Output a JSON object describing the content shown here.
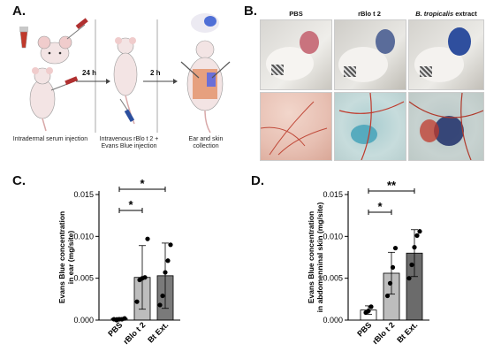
{
  "panelA": {
    "letter": "A.",
    "step1_caption": "Intradermal serum injection",
    "step2_caption": "Intravenous rBlo t 2 + Evans Blue injection",
    "step3_caption": "Ear and skin collection",
    "arrow1": "24 h",
    "arrow2": "2 h"
  },
  "panelB": {
    "letter": "B.",
    "col1": "PBS",
    "col2": "rBlo t 2",
    "col3_italic": "B. tropicalis",
    "col3_rest": " extract"
  },
  "panelC": {
    "letter": "C."
  },
  "panelD": {
    "letter": "D."
  },
  "chart_data": [
    {
      "type": "bar",
      "categories": [
        "PBS",
        "rBlo t 2",
        "Bt Ext."
      ],
      "values": [
        0.0002,
        0.0051,
        0.0053
      ],
      "error": [
        0.0001,
        0.0038,
        0.0039
      ],
      "points": [
        [
          0.0001,
          0.0,
          0.0001,
          0.0001,
          0.0002
        ],
        [
          0.0022,
          0.0048,
          0.005,
          0.0051,
          0.0097
        ],
        [
          0.0018,
          0.0029,
          0.0057,
          0.0071,
          0.009
        ]
      ],
      "ylabel": "Evans Blue concentration in ear (mg/site)",
      "ylim": [
        0,
        0.015
      ],
      "yticks": [
        "0.000",
        "0.005",
        "0.010",
        "0.015"
      ],
      "significance": [
        [
          "PBS",
          "rBlo t 2",
          "*"
        ],
        [
          "PBS",
          "Bt Ext.",
          "*"
        ]
      ],
      "colors": [
        "#ffffff",
        "#bdbdbd",
        "#7a7a7a"
      ]
    },
    {
      "type": "bar",
      "categories": [
        "PBS",
        "rBlo t 2",
        "Bt Ext."
      ],
      "values": [
        0.0012,
        0.0056,
        0.008
      ],
      "error": [
        0.0005,
        0.0025,
        0.0028
      ],
      "points": [
        [
          0.0009,
          0.0011,
          0.0016
        ],
        [
          0.0029,
          0.0044,
          0.0063,
          0.0086
        ],
        [
          0.005,
          0.0066,
          0.0087,
          0.0101,
          0.0106
        ]
      ],
      "ylabel": "Evans Blue concentration in abdomenninal skin (mg/site)",
      "ylim": [
        0,
        0.015
      ],
      "yticks": [
        "0.000",
        "0.005",
        "0.010",
        "0.015"
      ],
      "significance": [
        [
          "PBS",
          "rBlo t 2",
          "*"
        ],
        [
          "PBS",
          "Bt Ext.",
          "**"
        ]
      ],
      "colors": [
        "#ffffff",
        "#bdbdbd",
        "#6b6b6b"
      ]
    }
  ]
}
